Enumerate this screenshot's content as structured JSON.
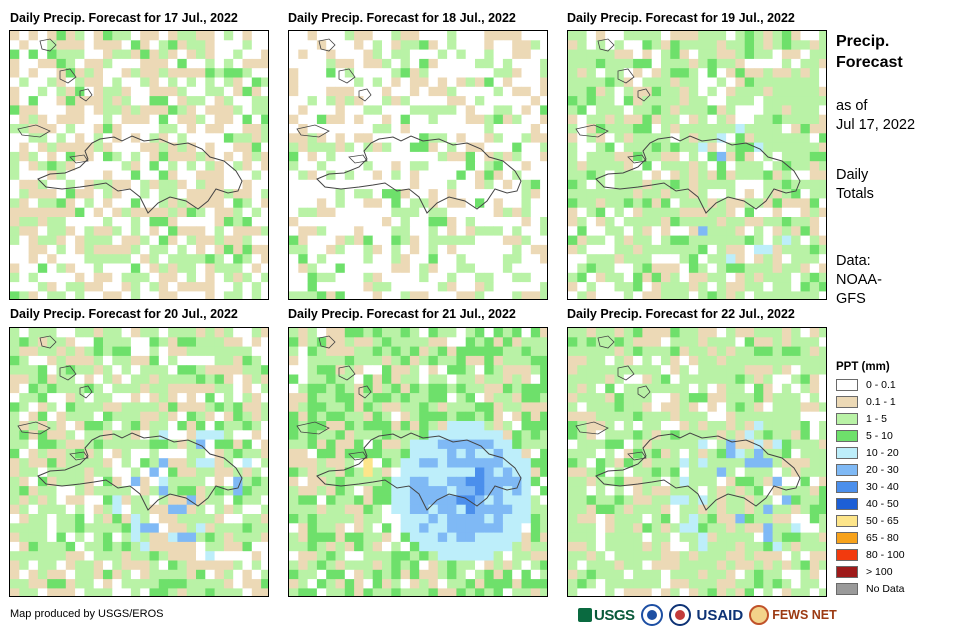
{
  "panels": [
    {
      "title": "Daily Precip. Forecast for 17 Jul., 2022"
    },
    {
      "title": "Daily Precip. Forecast for 18 Jul., 2022"
    },
    {
      "title": "Daily Precip. Forecast for 19 Jul., 2022"
    },
    {
      "title": "Daily Precip. Forecast for 20 Jul., 2022"
    },
    {
      "title": "Daily Precip. Forecast for 21 Jul., 2022"
    },
    {
      "title": "Daily Precip. Forecast for 22 Jul., 2022"
    }
  ],
  "side": {
    "title_line1": "Precip.",
    "title_line2": "Forecast",
    "asof_line1": "as of",
    "asof_line2": "Jul 17, 2022",
    "totals_line1": "Daily",
    "totals_line2": "Totals",
    "source_line1": "Data:",
    "source_line2": "NOAA-",
    "source_line3": "GFS"
  },
  "legend": {
    "title": "PPT (mm)",
    "items": [
      {
        "label": "0 - 0.1",
        "color": "#ffffff"
      },
      {
        "label": "0.1 - 1",
        "color": "#ecd9b6"
      },
      {
        "label": "1 - 5",
        "color": "#b9f2a6"
      },
      {
        "label": "5 - 10",
        "color": "#6ee06b"
      },
      {
        "label": "10 - 20",
        "color": "#bdeefa"
      },
      {
        "label": "20 - 30",
        "color": "#7fb9f5"
      },
      {
        "label": "30 - 40",
        "color": "#4b8fec"
      },
      {
        "label": "40 - 50",
        "color": "#1d5fd6"
      },
      {
        "label": "50 - 65",
        "color": "#fde58a"
      },
      {
        "label": "65 - 80",
        "color": "#f7a21b"
      },
      {
        "label": "80 - 100",
        "color": "#f23a0e"
      },
      {
        "label": "> 100",
        "color": "#9e1a1a"
      },
      {
        "label": "No Data",
        "color": "#9a9a9a"
      }
    ]
  },
  "credit": "Map produced by USGS/EROS",
  "logos": {
    "usgs": "USGS",
    "usaid": "USAID",
    "fews": "FEWS NET"
  },
  "cell_colors": {
    "none": "#ffffff",
    "trace": "#ecd9b6",
    "light": "#b9f2a6",
    "moderate": "#6ee06b",
    "heavy": "#bdeefa",
    "heavier": "#7fb9f5",
    "intense": "#4b8fec",
    "very_intense": "#1d5fd6",
    "extreme": "#fde58a",
    "coast": "#444444"
  }
}
